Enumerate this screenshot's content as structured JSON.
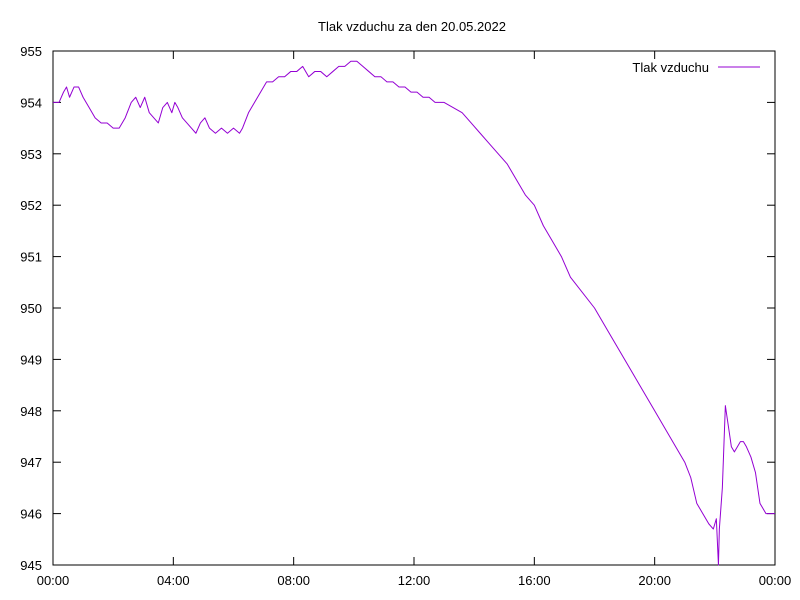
{
  "chart_data": {
    "type": "line",
    "title": "Tlak vzduchu za den 20.05.2022",
    "xlabel": "",
    "ylabel": "",
    "xlim": [
      0,
      24
    ],
    "ylim": [
      945,
      955
    ],
    "x_tick_values": [
      0,
      4,
      8,
      12,
      16,
      20,
      24
    ],
    "x_tick_labels": [
      "00:00",
      "04:00",
      "08:00",
      "12:00",
      "16:00",
      "20:00",
      "00:00"
    ],
    "y_tick_values": [
      945,
      946,
      947,
      948,
      949,
      950,
      951,
      952,
      953,
      954,
      955
    ],
    "y_tick_labels": [
      "945",
      "946",
      "947",
      "948",
      "949",
      "950",
      "951",
      "952",
      "953",
      "954",
      "955"
    ],
    "grid": false,
    "legend_position": "top-right",
    "series": [
      {
        "name": "Tlak vzduchu",
        "color": "#9400d3",
        "points": [
          [
            0.0,
            954.0
          ],
          [
            0.2,
            954.0
          ],
          [
            0.35,
            954.2
          ],
          [
            0.45,
            954.3
          ],
          [
            0.55,
            954.1
          ],
          [
            0.7,
            954.3
          ],
          [
            0.85,
            954.3
          ],
          [
            1.0,
            954.1
          ],
          [
            1.2,
            953.9
          ],
          [
            1.4,
            953.7
          ],
          [
            1.6,
            953.6
          ],
          [
            1.8,
            953.6
          ],
          [
            2.0,
            953.5
          ],
          [
            2.2,
            953.5
          ],
          [
            2.4,
            953.7
          ],
          [
            2.6,
            954.0
          ],
          [
            2.75,
            954.1
          ],
          [
            2.9,
            953.9
          ],
          [
            3.05,
            954.1
          ],
          [
            3.2,
            953.8
          ],
          [
            3.35,
            953.7
          ],
          [
            3.5,
            953.6
          ],
          [
            3.65,
            953.9
          ],
          [
            3.8,
            954.0
          ],
          [
            3.95,
            953.8
          ],
          [
            4.05,
            954.0
          ],
          [
            4.15,
            953.9
          ],
          [
            4.3,
            953.7
          ],
          [
            4.45,
            953.6
          ],
          [
            4.6,
            953.5
          ],
          [
            4.75,
            953.4
          ],
          [
            4.9,
            953.6
          ],
          [
            5.05,
            953.7
          ],
          [
            5.2,
            953.5
          ],
          [
            5.4,
            953.4
          ],
          [
            5.6,
            953.5
          ],
          [
            5.8,
            953.4
          ],
          [
            6.0,
            953.5
          ],
          [
            6.2,
            953.4
          ],
          [
            6.3,
            953.5
          ],
          [
            6.5,
            953.8
          ],
          [
            6.7,
            954.0
          ],
          [
            6.9,
            954.2
          ],
          [
            7.1,
            954.4
          ],
          [
            7.3,
            954.4
          ],
          [
            7.5,
            954.5
          ],
          [
            7.7,
            954.5
          ],
          [
            7.9,
            954.6
          ],
          [
            8.1,
            954.6
          ],
          [
            8.3,
            954.7
          ],
          [
            8.5,
            954.5
          ],
          [
            8.7,
            954.6
          ],
          [
            8.9,
            954.6
          ],
          [
            9.1,
            954.5
          ],
          [
            9.3,
            954.6
          ],
          [
            9.5,
            954.7
          ],
          [
            9.7,
            954.7
          ],
          [
            9.9,
            954.8
          ],
          [
            10.1,
            954.8
          ],
          [
            10.3,
            954.7
          ],
          [
            10.5,
            954.6
          ],
          [
            10.7,
            954.5
          ],
          [
            10.9,
            954.5
          ],
          [
            11.1,
            954.4
          ],
          [
            11.3,
            954.4
          ],
          [
            11.5,
            954.3
          ],
          [
            11.7,
            954.3
          ],
          [
            11.9,
            954.2
          ],
          [
            12.1,
            954.2
          ],
          [
            12.3,
            954.1
          ],
          [
            12.5,
            954.1
          ],
          [
            12.7,
            954.0
          ],
          [
            13.0,
            954.0
          ],
          [
            13.3,
            953.9
          ],
          [
            13.6,
            953.8
          ],
          [
            13.9,
            953.6
          ],
          [
            14.2,
            953.4
          ],
          [
            14.5,
            953.2
          ],
          [
            14.8,
            953.0
          ],
          [
            15.1,
            952.8
          ],
          [
            15.4,
            952.5
          ],
          [
            15.7,
            952.2
          ],
          [
            16.0,
            952.0
          ],
          [
            16.3,
            951.6
          ],
          [
            16.6,
            951.3
          ],
          [
            16.9,
            951.0
          ],
          [
            17.2,
            950.6
          ],
          [
            18.0,
            950.0
          ],
          [
            18.5,
            949.5
          ],
          [
            19.0,
            949.0
          ],
          [
            19.5,
            948.5
          ],
          [
            20.0,
            948.0
          ],
          [
            20.5,
            947.5
          ],
          [
            21.0,
            947.0
          ],
          [
            21.2,
            946.7
          ],
          [
            21.4,
            946.2
          ],
          [
            21.6,
            946.0
          ],
          [
            21.8,
            945.8
          ],
          [
            21.95,
            945.7
          ],
          [
            22.05,
            945.9
          ],
          [
            22.12,
            945.0
          ],
          [
            22.15,
            945.7
          ],
          [
            22.25,
            946.5
          ],
          [
            22.35,
            948.1
          ],
          [
            22.45,
            947.7
          ],
          [
            22.55,
            947.3
          ],
          [
            22.65,
            947.2
          ],
          [
            22.75,
            947.3
          ],
          [
            22.85,
            947.4
          ],
          [
            22.95,
            947.4
          ],
          [
            23.05,
            947.3
          ],
          [
            23.2,
            947.1
          ],
          [
            23.35,
            946.8
          ],
          [
            23.5,
            946.2
          ],
          [
            23.7,
            946.0
          ],
          [
            24.0,
            946.0
          ]
        ]
      }
    ]
  }
}
